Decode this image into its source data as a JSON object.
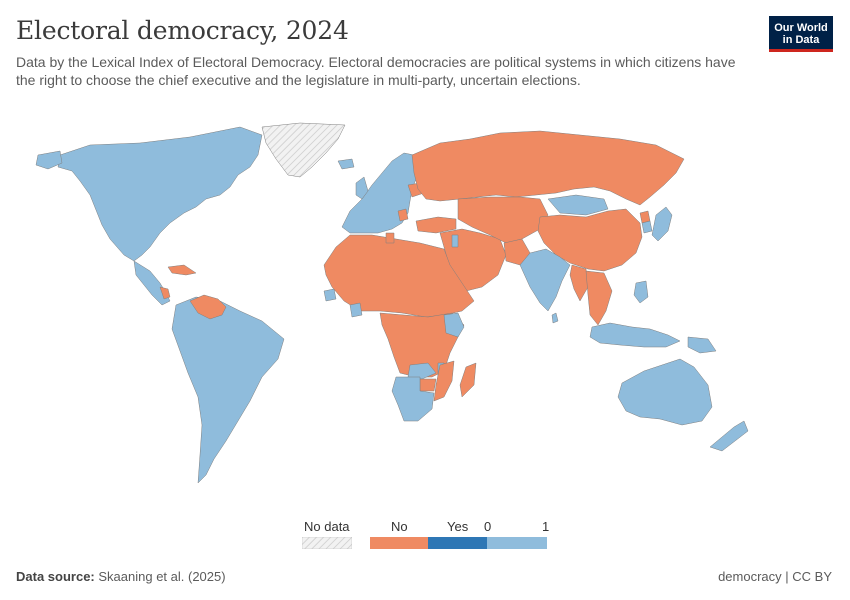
{
  "header": {
    "title": "Electoral democracy, 2024",
    "subtitle": "Data by the Lexical Index of Electoral Democracy. Electoral democracies are political systems in which citizens have the right to choose the chief executive and the legislature in multi-party, uncertain elections.",
    "logo_line1": "Our World",
    "logo_line2": "in Data"
  },
  "colors": {
    "yes": "#8fbcdc",
    "yes_dark": "#2e77b5",
    "no": "#ef8a62",
    "no_data": "#e6e6e6",
    "border": "#7f7f7f"
  },
  "legend": {
    "no_data_label": "No data",
    "no_label": "No",
    "yes_label": "Yes",
    "zero_label": "0",
    "one_label": "1"
  },
  "map_data": {
    "categories": [
      "No",
      "Yes"
    ],
    "regions": [
      {
        "name": "North America",
        "value": "Yes"
      },
      {
        "name": "Greenland",
        "value": "No data"
      },
      {
        "name": "Central America",
        "value": "Yes"
      },
      {
        "name": "Cuba",
        "value": "No"
      },
      {
        "name": "Nicaragua",
        "value": "No"
      },
      {
        "name": "Venezuela",
        "value": "No"
      },
      {
        "name": "South America",
        "value": "Yes"
      },
      {
        "name": "Western Europe",
        "value": "Yes"
      },
      {
        "name": "Russia",
        "value": "No"
      },
      {
        "name": "Belarus",
        "value": "No"
      },
      {
        "name": "Serbia",
        "value": "No"
      },
      {
        "name": "Turkey",
        "value": "No"
      },
      {
        "name": "Middle East",
        "value": "No"
      },
      {
        "name": "Israel",
        "value": "Yes"
      },
      {
        "name": "Central Asia",
        "value": "No"
      },
      {
        "name": "Mongolia",
        "value": "Yes"
      },
      {
        "name": "China",
        "value": "No"
      },
      {
        "name": "North Korea",
        "value": "No"
      },
      {
        "name": "South Korea",
        "value": "Yes"
      },
      {
        "name": "Japan",
        "value": "Yes"
      },
      {
        "name": "India",
        "value": "Yes"
      },
      {
        "name": "Sri Lanka",
        "value": "Yes"
      },
      {
        "name": "Pakistan",
        "value": "No"
      },
      {
        "name": "Myanmar",
        "value": "No"
      },
      {
        "name": "Southeast Asia mainland",
        "value": "No"
      },
      {
        "name": "Indonesia",
        "value": "Yes"
      },
      {
        "name": "Philippines",
        "value": "Yes"
      },
      {
        "name": "Papua New Guinea",
        "value": "Yes"
      },
      {
        "name": "Australia",
        "value": "Yes"
      },
      {
        "name": "New Zealand",
        "value": "Yes"
      },
      {
        "name": "North Africa",
        "value": "No"
      },
      {
        "name": "Tunisia",
        "value": "No"
      },
      {
        "name": "Senegal",
        "value": "Yes"
      },
      {
        "name": "Ghana",
        "value": "Yes"
      },
      {
        "name": "Kenya",
        "value": "Yes"
      },
      {
        "name": "Central Africa",
        "value": "No"
      },
      {
        "name": "Zambia",
        "value": "Yes"
      },
      {
        "name": "Malawi",
        "value": "Yes"
      },
      {
        "name": "Mozambique",
        "value": "No"
      },
      {
        "name": "Zimbabwe",
        "value": "No"
      },
      {
        "name": "Southern Africa",
        "value": "Yes"
      },
      {
        "name": "Madagascar",
        "value": "No"
      }
    ]
  },
  "footer": {
    "source_label": "Data source:",
    "source_value": "Skaaning et al. (2025)",
    "right": "democracy | CC BY"
  }
}
